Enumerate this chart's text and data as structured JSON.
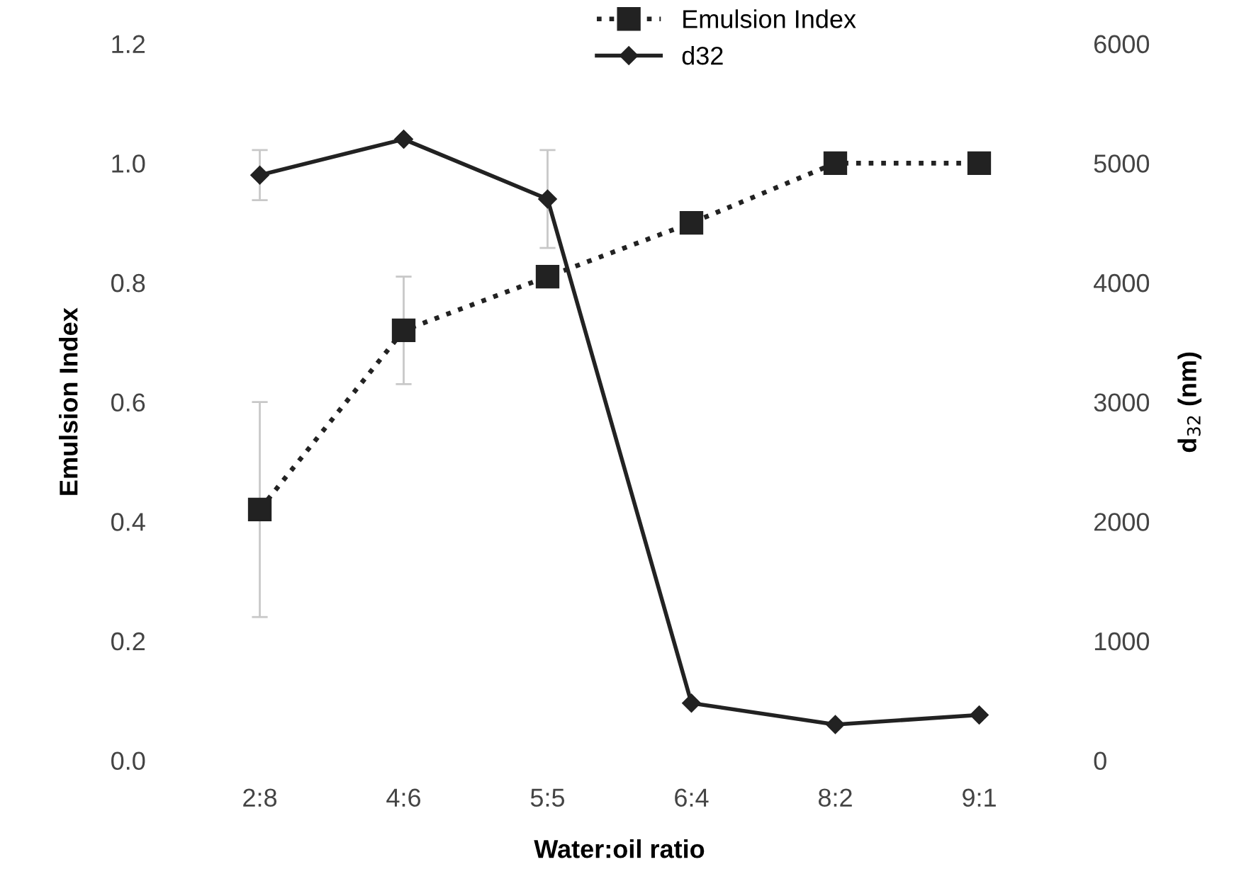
{
  "chart_data": {
    "type": "line",
    "xlabel": "Water:oil ratio",
    "ylabel": "Emulsion Index",
    "y2label": "d$_{32}$ (nm)",
    "categories": [
      "2:8",
      "4:6",
      "5:5",
      "6:4",
      "8:2",
      "9:1"
    ],
    "series": [
      {
        "name": "Emulsion Index",
        "color": "#222222",
        "values": [
          0.42,
          0.72,
          0.81,
          0.9,
          1.0,
          1.0
        ],
        "errors": [
          0.18,
          0.09,
          null,
          null,
          null,
          null
        ],
        "marker": "square",
        "line_style": "dotted"
      },
      {
        "name": "d32",
        "color": "#222222",
        "values": [
          4900,
          5200,
          4700,
          480,
          300,
          380
        ],
        "errors": [
          210,
          null,
          410,
          null,
          null,
          null
        ],
        "marker": "diamond",
        "line_style": "solid",
        "axis": "y2"
      }
    ],
    "ylim": [
      0,
      1.2
    ],
    "yticks": [
      {
        "value": 0,
        "label": "0.0"
      },
      0.2,
      0.4,
      0.6,
      0.8,
      {
        "value": 1,
        "label": "1.0"
      },
      1.2
    ],
    "y2lim": [
      0,
      6000
    ],
    "y2ticks": [
      0,
      1000,
      2000,
      3000,
      4000,
      5000,
      6000
    ],
    "grid": false,
    "legend": "top"
  }
}
